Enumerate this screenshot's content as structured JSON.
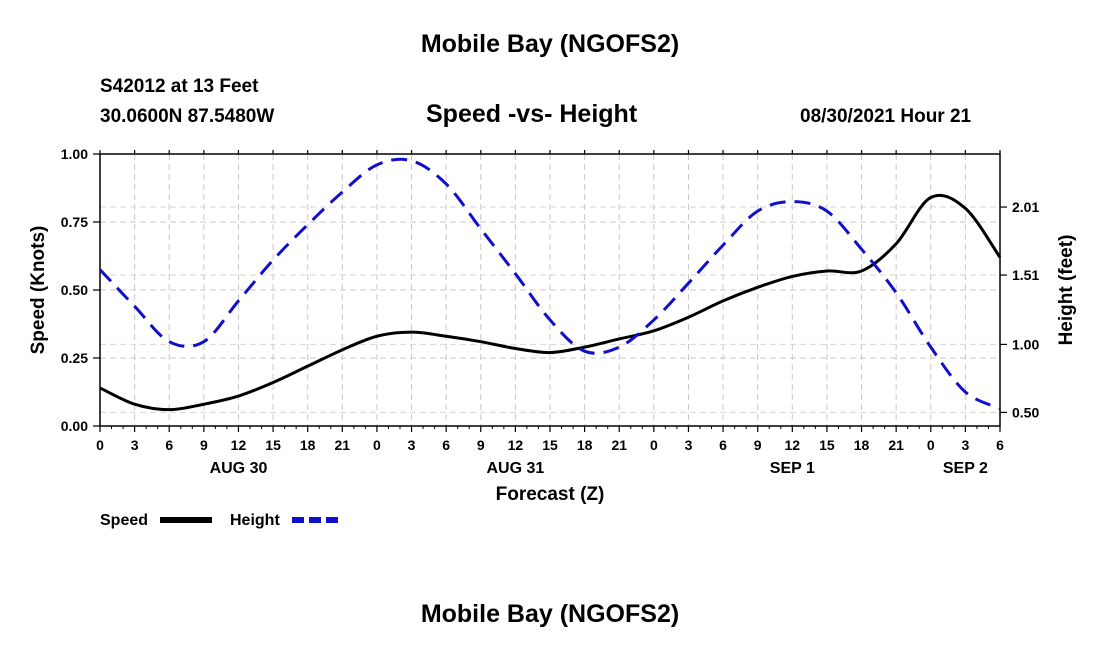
{
  "title": "Mobile Bay (NGOFS2)",
  "footer_title": "Mobile Bay (NGOFS2)",
  "station": "S42012 at 13 Feet",
  "coordinates": "30.0600N  87.5480W",
  "subtitle": "Speed -vs- Height",
  "datetime": "08/30/2021 Hour 21",
  "chart_data": {
    "type": "line",
    "title": "Speed -vs- Height",
    "xlabel": "Forecast (Z)",
    "ylabel": "Speed (Knots)",
    "y2label": "Height (feet)",
    "xlim": [
      0,
      78
    ],
    "ylim": [
      0,
      1.0
    ],
    "y2lim": [
      0.4,
      2.4
    ],
    "grid": true,
    "x_tick_values": [
      0,
      3,
      6,
      9,
      12,
      15,
      18,
      21,
      24,
      27,
      30,
      33,
      36,
      39,
      42,
      45,
      48,
      51,
      54,
      57,
      60,
      63,
      66,
      69,
      72,
      75,
      78
    ],
    "x_tick_labels": [
      "0",
      "3",
      "6",
      "9",
      "12",
      "15",
      "18",
      "21",
      "0",
      "3",
      "6",
      "9",
      "12",
      "15",
      "18",
      "21",
      "0",
      "3",
      "6",
      "9",
      "12",
      "15",
      "18",
      "21",
      "0",
      "3",
      "6"
    ],
    "day_labels": [
      {
        "label": "AUG 30",
        "x": 12
      },
      {
        "label": "AUG 31",
        "x": 36
      },
      {
        "label": "SEP 1",
        "x": 60
      },
      {
        "label": "SEP 2",
        "x": 75
      }
    ],
    "y_ticks": [
      0.0,
      0.25,
      0.5,
      0.75,
      1.0
    ],
    "y_tick_labels": [
      "0.00",
      "0.25",
      "0.50",
      "0.75",
      "1.00"
    ],
    "y2_ticks": [
      0.5,
      1.0,
      1.51,
      2.01
    ],
    "y2_tick_labels": [
      "0.50",
      "1.00",
      "1.51",
      "2.01"
    ],
    "x": [
      0,
      3,
      6,
      9,
      12,
      15,
      18,
      21,
      24,
      27,
      30,
      33,
      36,
      39,
      42,
      45,
      48,
      51,
      54,
      57,
      60,
      63,
      66,
      69,
      72,
      75,
      78
    ],
    "series": [
      {
        "name": "Speed",
        "axis": "left",
        "color": "#000000",
        "style": "solid",
        "values": [
          0.14,
          0.08,
          0.06,
          0.08,
          0.11,
          0.16,
          0.22,
          0.28,
          0.33,
          0.345,
          0.33,
          0.31,
          0.285,
          0.27,
          0.29,
          0.32,
          0.35,
          0.4,
          0.46,
          0.51,
          0.55,
          0.57,
          0.57,
          0.67,
          0.84,
          0.8,
          0.62
        ]
      },
      {
        "name": "Height",
        "axis": "right",
        "color": "#1010cc",
        "style": "dashed",
        "values": [
          1.55,
          1.28,
          1.02,
          1.02,
          1.32,
          1.62,
          1.88,
          2.12,
          2.32,
          2.35,
          2.18,
          1.85,
          1.52,
          1.18,
          0.95,
          0.98,
          1.18,
          1.45,
          1.73,
          1.98,
          2.05,
          1.98,
          1.7,
          1.38,
          0.98,
          0.65,
          0.53
        ]
      }
    ],
    "legend": [
      {
        "label": "Speed",
        "color": "#000000",
        "style": "solid"
      },
      {
        "label": "Height",
        "color": "#1010cc",
        "style": "dashed"
      }
    ]
  }
}
